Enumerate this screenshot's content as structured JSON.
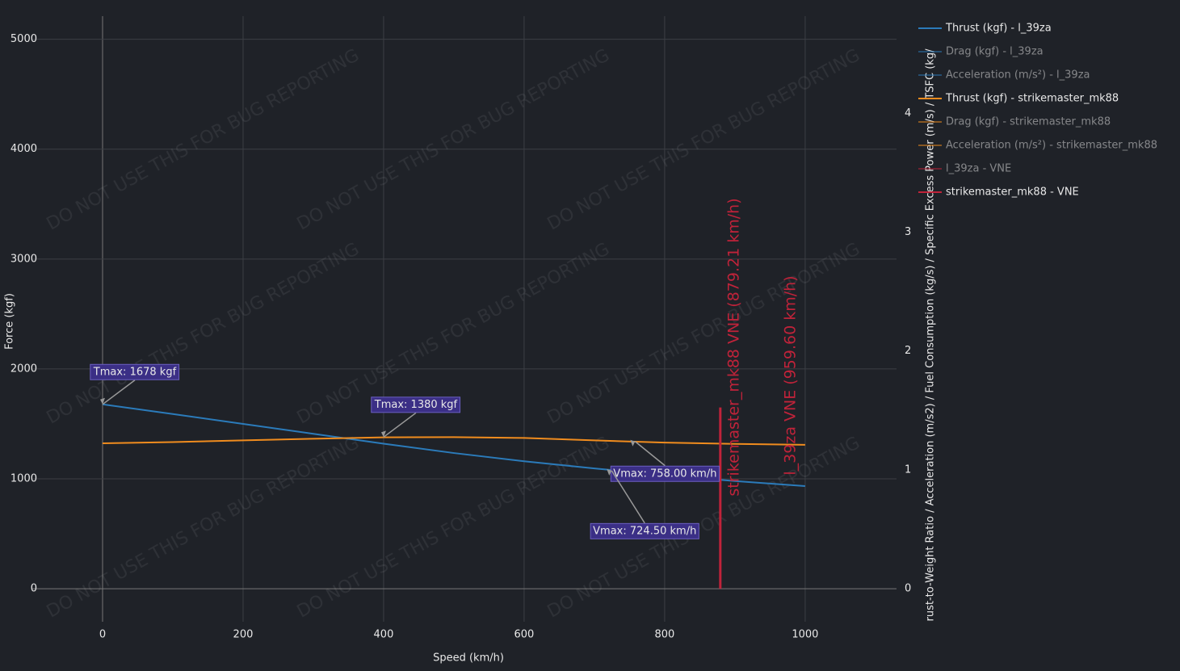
{
  "chart_data": {
    "type": "line",
    "xlabel": "Speed (km/h)",
    "ylabel": "Force (kgf)",
    "y2label": "rust-to-Weight Ratio / Acceleration (m/s2) / Fuel Consumption (kg/s) / Specific Excess Power (m/s) / TSFC (kg/",
    "watermark": "DO NOT USE THIS FOR BUG REPORTING",
    "xlim": [
      -100,
      1130
    ],
    "ylim": [
      -300,
      5210
    ],
    "y2lim": [
      -0.28,
      4.82
    ],
    "xticks": [
      0,
      200,
      400,
      600,
      800,
      1000
    ],
    "yticks": [
      0,
      1000,
      2000,
      3000,
      4000,
      5000
    ],
    "y2ticks": [
      0,
      1,
      2,
      3,
      4
    ],
    "grid": true,
    "x": [
      0,
      100,
      200,
      300,
      400,
      500,
      600,
      700,
      800,
      900,
      1000
    ],
    "series": [
      {
        "name": "Thrust (kgf) - l_39za",
        "color": "#2b7bba",
        "visible": true,
        "values": [
          1678,
          1590,
          1500,
          1410,
          1320,
          1235,
          1160,
          1095,
          1035,
          980,
          934
        ]
      },
      {
        "name": "Drag (kgf) - l_39za",
        "color": "#2b7bba",
        "visible": false
      },
      {
        "name": "Acceleration (m/s²) - l_39za",
        "color": "#2b7bba",
        "visible": false
      },
      {
        "name": "Thrust (kgf) - strikemaster_mk88",
        "color": "#f08c1e",
        "visible": true,
        "values": [
          1324,
          1335,
          1350,
          1365,
          1378,
          1380,
          1372,
          1350,
          1330,
          1318,
          1310
        ]
      },
      {
        "name": "Drag (kgf) - strikemaster_mk88",
        "color": "#f08c1e",
        "visible": false
      },
      {
        "name": "Acceleration (m/s²) - strikemaster_mk88",
        "color": "#f08c1e",
        "visible": false
      },
      {
        "name": "l_39za - VNE",
        "color": "#c0233a",
        "visible": false
      },
      {
        "name": "strikemaster_mk88 - VNE",
        "color": "#c0233a",
        "visible": true,
        "vne": 879.21,
        "top": 1650
      }
    ],
    "vne_labels": [
      {
        "text": "strikemaster_mk88 VNE (879.21 km/h)",
        "x": 879.21
      },
      {
        "text": "l_39za VNE (959.60 km/h)",
        "x": 959.6
      }
    ],
    "annotations": [
      {
        "text": "Tmax: 1678 kgf",
        "x": 0,
        "y": 1678
      },
      {
        "text": "Tmax: 1380 kgf",
        "x": 400,
        "y": 1380
      },
      {
        "text": "Vmax: 758.00 km/h",
        "x": 758,
        "y": 1340
      },
      {
        "text": "Vmax: 724.50 km/h",
        "x": 724.5,
        "y": 1075
      }
    ]
  }
}
